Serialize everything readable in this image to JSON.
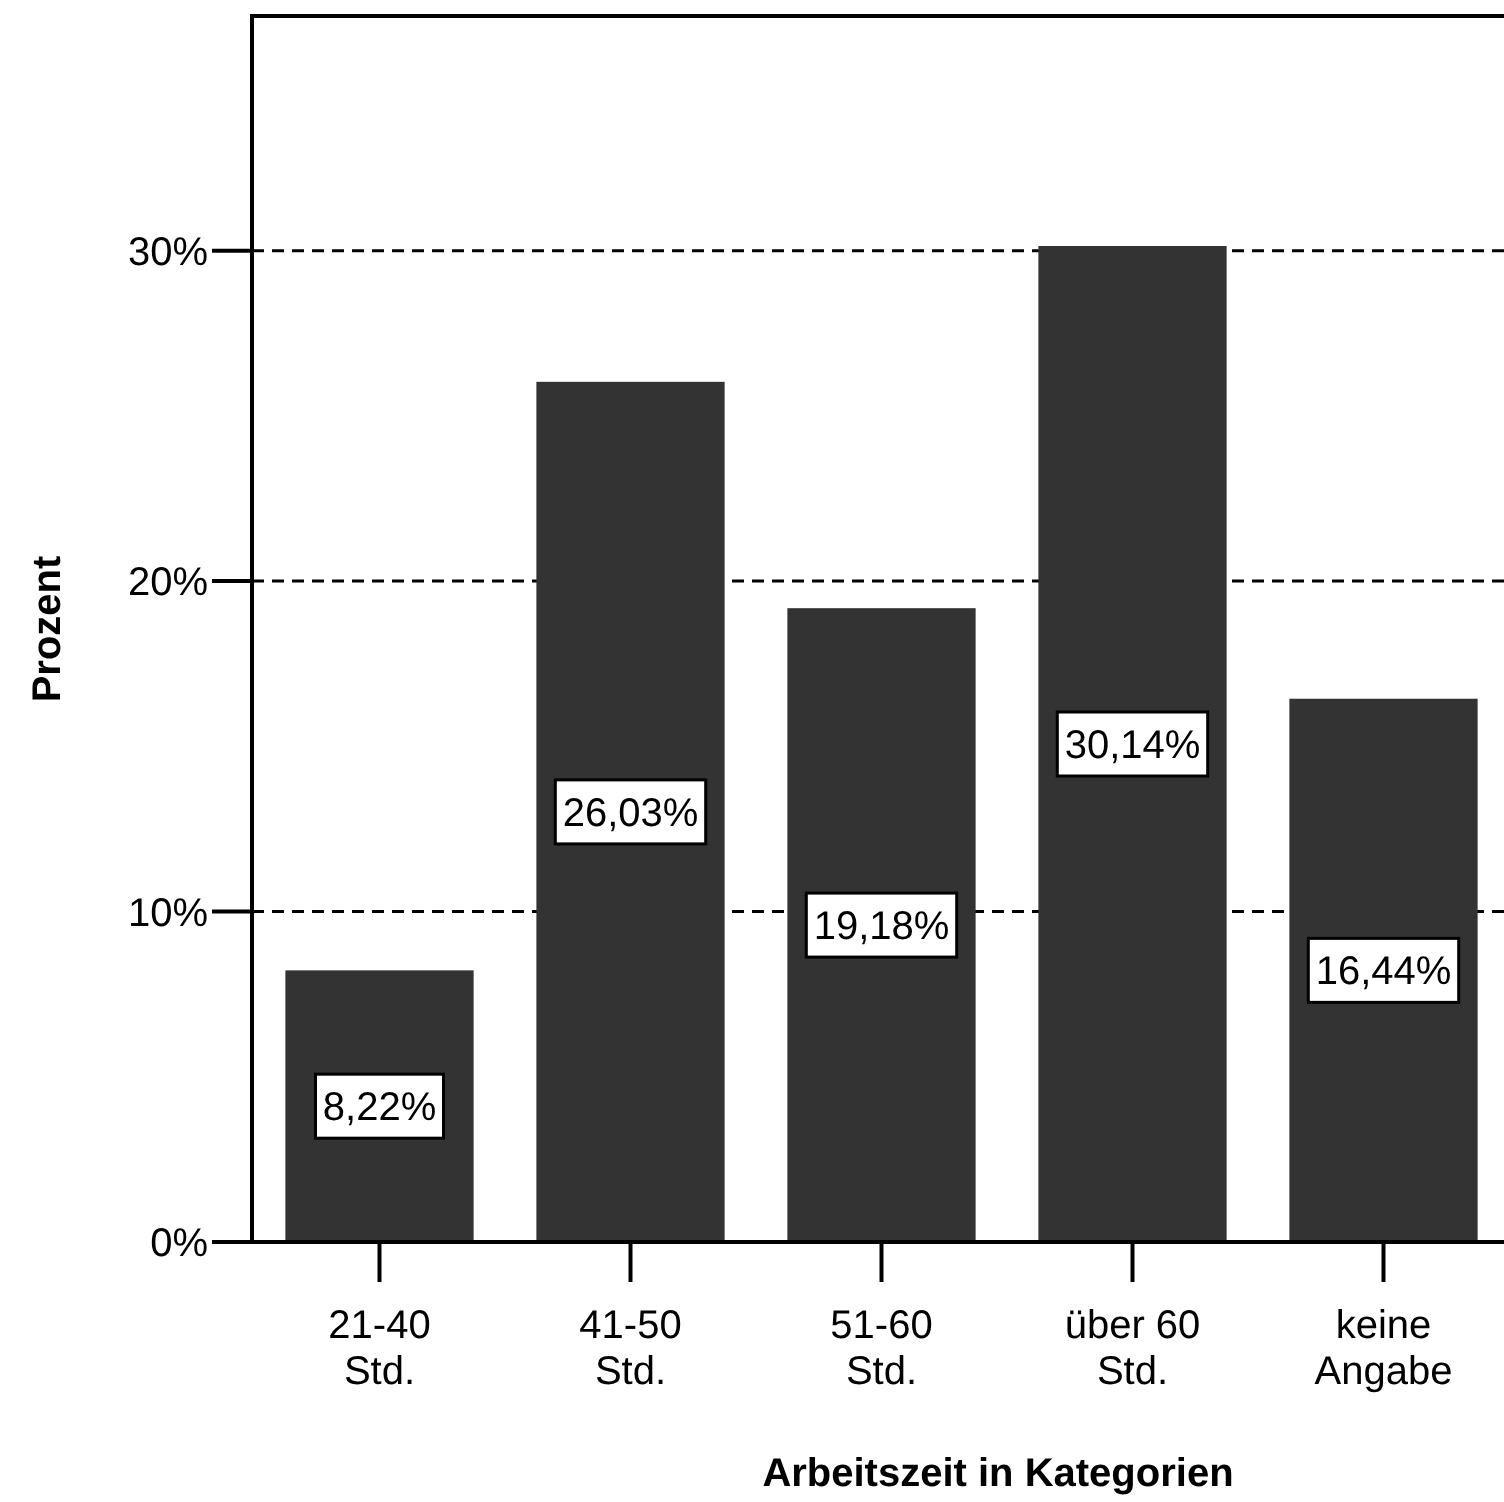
{
  "chart_data": {
    "type": "bar",
    "xlabel": "Arbeitszeit in Kategorien",
    "ylabel": "Prozent",
    "categories": [
      "21-40\nStd.",
      "41-50\nStd.",
      "51-60\nStd.",
      "über 60\nStd.",
      "keine\nAngabe"
    ],
    "values": [
      8.22,
      26.03,
      19.18,
      30.14,
      16.44
    ],
    "value_labels": [
      "8,22%",
      "26,03%",
      "19,18%",
      "30,14%",
      "16,44%"
    ],
    "color": "#333333",
    "ylim": [
      0,
      37.1
    ],
    "yticks": [
      {
        "value": 0,
        "label": "0%"
      },
      {
        "value": 10,
        "label": "10%"
      },
      {
        "value": 20,
        "label": "20%"
      },
      {
        "value": 30,
        "label": "30%"
      }
    ],
    "grid": "y"
  }
}
